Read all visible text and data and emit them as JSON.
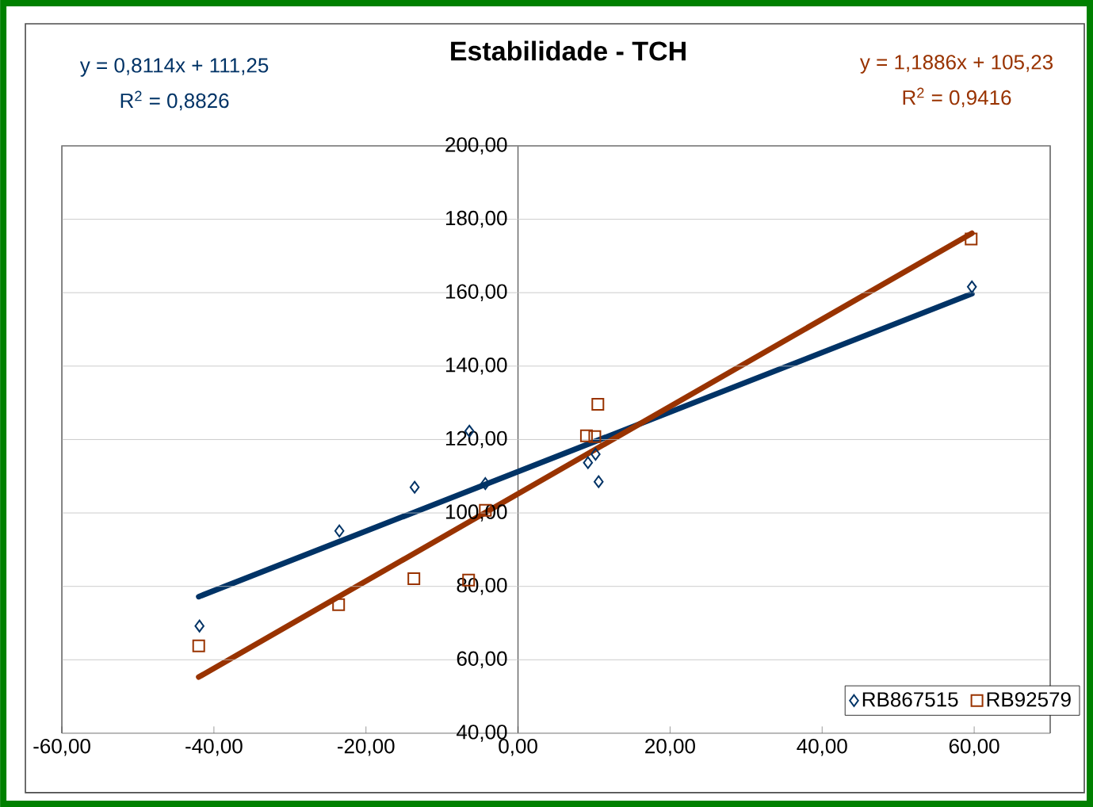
{
  "chart_data": {
    "type": "scatter",
    "title": "Estabilidade - TCH",
    "xlim": [
      -60,
      70
    ],
    "ylim": [
      40,
      200
    ],
    "xticks": [
      {
        "value": -60,
        "label": "-60,00"
      },
      {
        "value": -40,
        "label": "-40,00"
      },
      {
        "value": -20,
        "label": "-20,00"
      },
      {
        "value": 0,
        "label": "0,00"
      },
      {
        "value": 20,
        "label": "20,00"
      },
      {
        "value": 40,
        "label": "40,00"
      },
      {
        "value": 60,
        "label": "60,00"
      }
    ],
    "yticks": [
      {
        "value": 40,
        "label": "40,00"
      },
      {
        "value": 60,
        "label": "60,00"
      },
      {
        "value": 80,
        "label": "80,00"
      },
      {
        "value": 100,
        "label": "100,00"
      },
      {
        "value": 120,
        "label": "120,00"
      },
      {
        "value": 140,
        "label": "140,00"
      },
      {
        "value": 160,
        "label": "160,00"
      },
      {
        "value": 180,
        "label": "180,00"
      },
      {
        "value": 200,
        "label": "200,00"
      }
    ],
    "grid": "y",
    "legend": "bottom right",
    "series": [
      {
        "name": "RB867515",
        "type": "scatter",
        "marker": "diamond",
        "color": "#003366",
        "x": [
          -41.9,
          -23.5,
          -13.6,
          -6.4,
          -4.3,
          9.2,
          10.2,
          10.6,
          59.7
        ],
        "values": [
          69.2,
          95.1,
          107.0,
          122.3,
          108.0,
          113.7,
          116.0,
          108.5,
          161.6
        ]
      },
      {
        "name": "RB92579",
        "type": "scatter",
        "marker": "square",
        "color": "#993300",
        "x": [
          -42.0,
          -23.6,
          -13.7,
          -6.5,
          -4.3,
          9.0,
          10.1,
          10.5,
          59.6
        ],
        "values": [
          63.8,
          75.0,
          82.1,
          81.7,
          100.7,
          121.0,
          120.8,
          129.6,
          174.6
        ]
      },
      {
        "type": "line",
        "color": "#003366",
        "x": [
          -42.0,
          59.7
        ],
        "values": [
          77.2,
          159.7
        ]
      },
      {
        "type": "line",
        "color": "#993300",
        "x": [
          -42.0,
          59.7
        ],
        "values": [
          55.3,
          176.2
        ]
      }
    ],
    "annotations": [
      "y = 0,8114x + 111,25",
      "R$^{2}$ = 0,8826",
      "y = 1,1886x + 105,23",
      "R$^{2}$ = 0,9416"
    ]
  }
}
